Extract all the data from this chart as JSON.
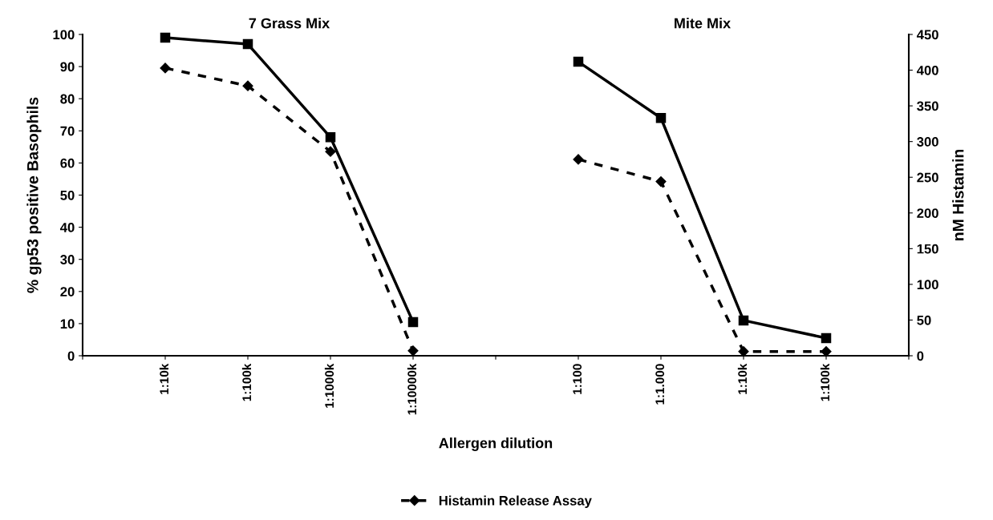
{
  "chart_data": {
    "type": "line",
    "annotations": [
      "7 Grass Mix",
      "Mite Mix"
    ],
    "xlabel": "Allergen dilution",
    "ylabel": "% gp53 positive Basophils",
    "y2label": "nM Histamin",
    "categories": [
      null,
      "1:10k",
      "1:100k",
      "1:1000k",
      "1:10000k",
      null,
      "1:100",
      "1:1.000",
      "1:10k",
      "1:100k",
      null
    ],
    "series": [
      {
        "color": "#000000",
        "marker": "square",
        "line_style": "solid",
        "values": [
          null,
          99,
          97,
          68,
          10.5,
          null,
          91.5,
          74,
          11,
          5.5,
          null
        ]
      },
      {
        "name": "Histamin Release Assay",
        "color": "#000000",
        "marker": "diamond",
        "line_style": "dashed",
        "axis": "y2",
        "values": [
          null,
          403,
          378,
          286,
          7,
          null,
          275,
          244,
          6,
          6,
          null
        ]
      }
    ],
    "ylim": [
      0,
      100
    ],
    "yticks": [
      0,
      10,
      20,
      30,
      40,
      50,
      60,
      70,
      80,
      90,
      100
    ],
    "y2lim": [
      0,
      450
    ],
    "y2ticks": [
      0,
      50,
      100,
      150,
      200,
      250,
      300,
      350,
      400,
      450
    ],
    "grid": false,
    "legend": "bottom"
  }
}
